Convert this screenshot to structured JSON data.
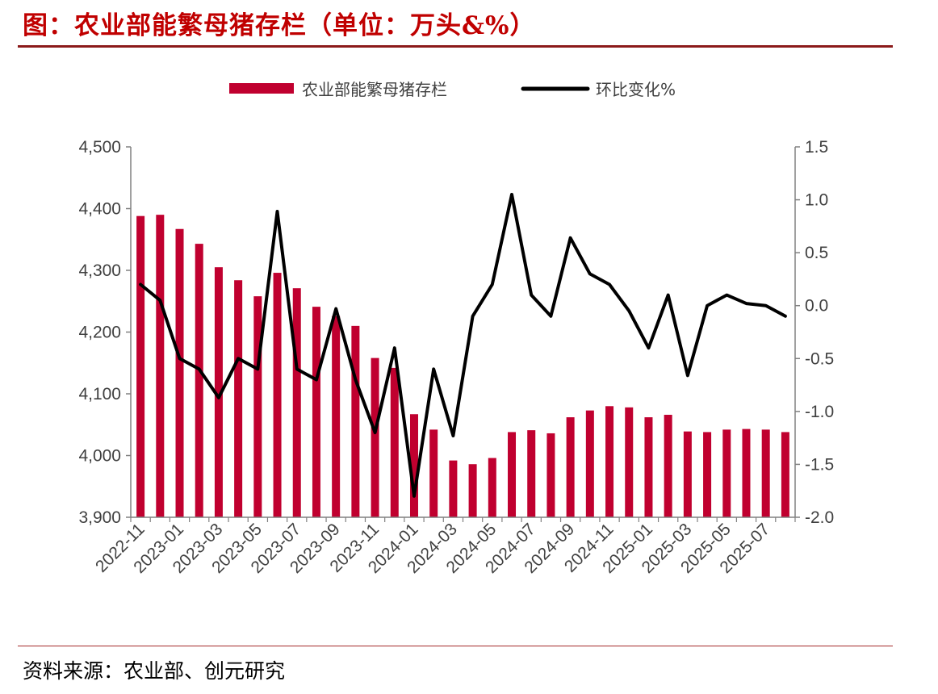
{
  "header": {
    "title": "图：农业部能繁母猪存栏（单位：万头&%）"
  },
  "footer": {
    "source": "资料来源：农业部、创元研究"
  },
  "chart_data": {
    "type": "bar+line",
    "categories": [
      "2022-11",
      "2022-12",
      "2023-01",
      "2023-02",
      "2023-03",
      "2023-04",
      "2023-05",
      "2023-06",
      "2023-07",
      "2023-08",
      "2023-09",
      "2023-10",
      "2023-11",
      "2023-12",
      "2024-01",
      "2024-02",
      "2024-03",
      "2024-04",
      "2024-05",
      "2024-06",
      "2024-07",
      "2024-08",
      "2024-09",
      "2024-10",
      "2024-11",
      "2024-12",
      "2025-01",
      "2025-02",
      "2025-03",
      "2025-04",
      "2025-05",
      "2025-06",
      "2025-07",
      "2025-08"
    ],
    "x_tick_labels": [
      "2022-11",
      "2023-01",
      "2023-03",
      "2023-05",
      "2023-07",
      "2023-09",
      "2023-11",
      "2024-01",
      "2024-03",
      "2024-05",
      "2024-07",
      "2024-09",
      "2024-11",
      "2025-01",
      "2025-03",
      "2025-05",
      "2025-07"
    ],
    "series": [
      {
        "name": "农业部能繁母猪存栏",
        "type": "bar",
        "axis": "left",
        "color": "#c0002f",
        "values": [
          4388,
          4390,
          4367,
          4343,
          4305,
          4284,
          4258,
          4296,
          4271,
          4241,
          4226,
          4210,
          4158,
          4142,
          4067,
          4042,
          3992,
          3986,
          3996,
          4038,
          4041,
          4036,
          4062,
          4073,
          4080,
          4078,
          4062,
          4066,
          4039,
          4038,
          4042,
          4043,
          4042,
          4038
        ]
      },
      {
        "name": "环比变化%",
        "type": "line",
        "axis": "right",
        "color": "#000000",
        "values": [
          0.2,
          0.05,
          -0.5,
          -0.6,
          -0.87,
          -0.5,
          -0.6,
          0.89,
          -0.6,
          -0.7,
          -0.03,
          -0.7,
          -1.2,
          -0.4,
          -1.8,
          -0.6,
          -1.23,
          -0.1,
          0.2,
          1.05,
          0.1,
          -0.1,
          0.64,
          0.3,
          0.2,
          -0.05,
          -0.4,
          0.1,
          -0.66,
          0.0,
          0.1,
          0.02,
          0.0,
          -0.1
        ]
      }
    ],
    "y_left": {
      "ylim": [
        3900,
        4500
      ],
      "ticks": [
        "4,500",
        "4,400",
        "4,300",
        "4,200",
        "4,100",
        "4,000",
        "3,900"
      ]
    },
    "y_right": {
      "ylim": [
        -2.0,
        1.5
      ],
      "ticks": [
        "1.5",
        "1.0",
        "0.5",
        "0.0",
        "-0.5",
        "-1.0",
        "-1.5",
        "-2.0"
      ]
    },
    "legend": {
      "position": "top-center",
      "items": [
        "农业部能繁母猪存栏",
        "环比变化%"
      ]
    },
    "grid": false
  }
}
